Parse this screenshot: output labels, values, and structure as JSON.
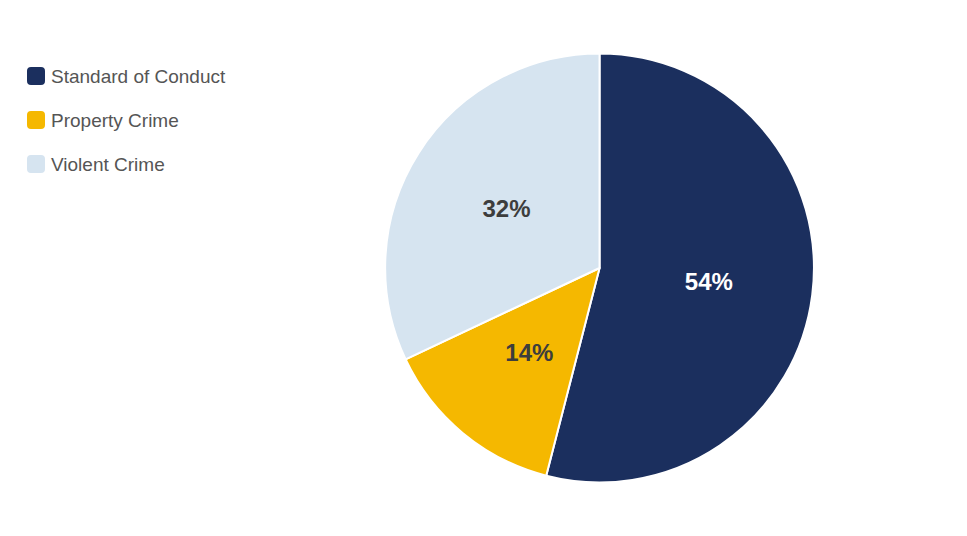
{
  "chart_data": {
    "type": "pie",
    "categories": [
      "Standard of Conduct",
      "Property Crime",
      "Violent Crime"
    ],
    "values": [
      54,
      14,
      32
    ],
    "value_labels": [
      "54%",
      "14%",
      "32%"
    ],
    "colors": [
      "#1b2f5e",
      "#f5b800",
      "#d6e4f0"
    ],
    "data_labels": true,
    "legend": "upper left"
  }
}
